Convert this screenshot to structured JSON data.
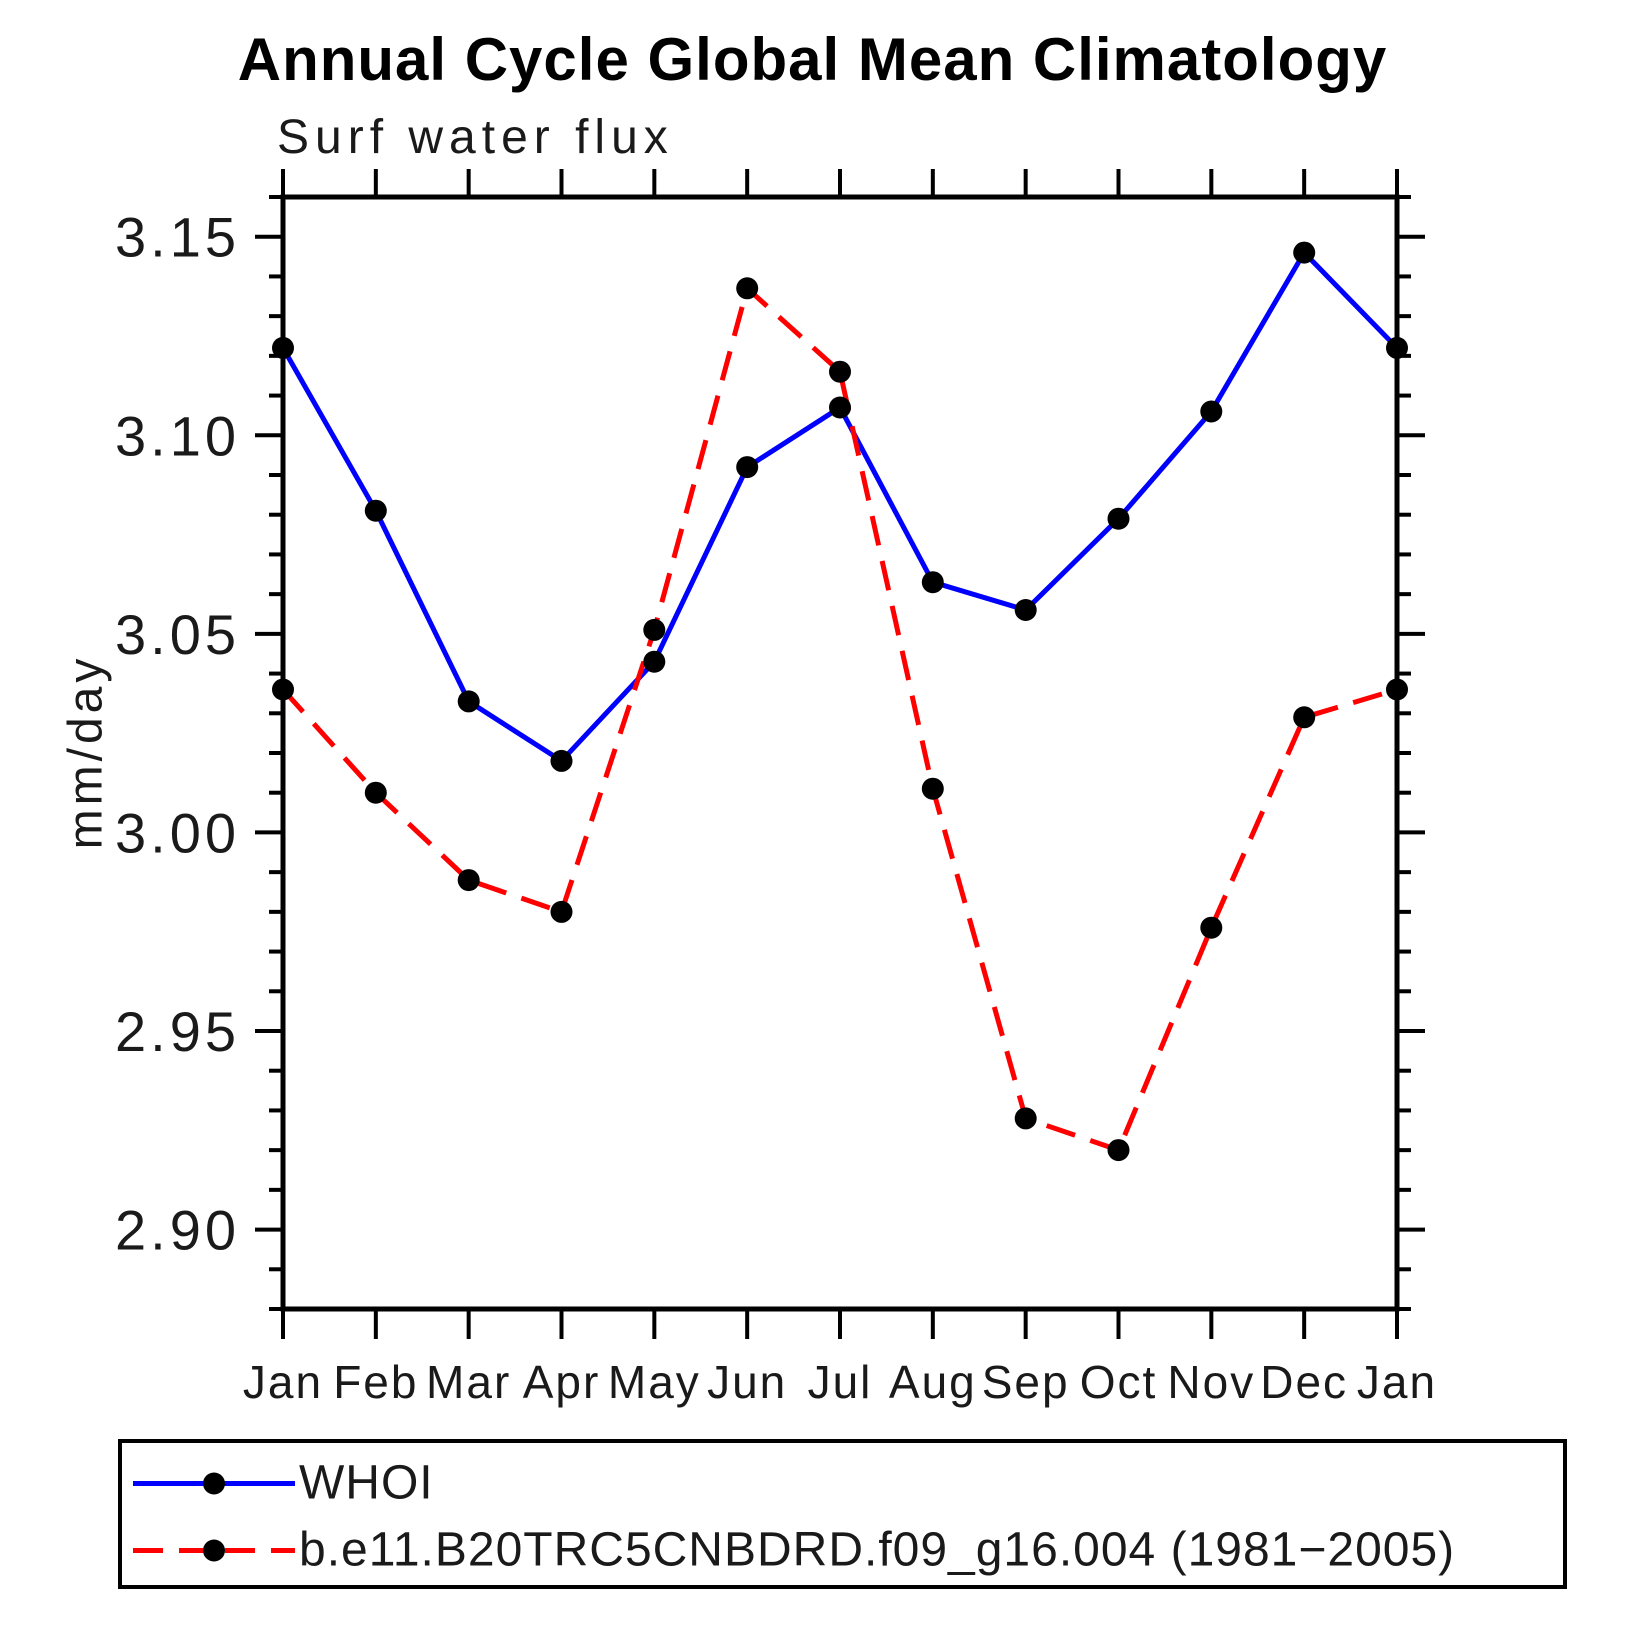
{
  "title": "Annual Cycle Global Mean Climatology",
  "subtitle": "Surf water flux",
  "chart_data": {
    "type": "line",
    "x_labels": [
      "Jan",
      "Feb",
      "Mar",
      "Apr",
      "May",
      "Jun",
      "Jul",
      "Aug",
      "Sep",
      "Oct",
      "Nov",
      "Dec",
      "Jan"
    ],
    "ylabel": "mm/day",
    "ylim": [
      2.88,
      3.16
    ],
    "y_major_ticks": [
      2.9,
      2.95,
      3.0,
      3.05,
      3.1,
      3.15
    ],
    "y_major_tick_labels": [
      "2.90",
      "2.95",
      "3.00",
      "3.05",
      "3.10",
      "3.15"
    ],
    "y_minor_step": 0.01,
    "grid": false,
    "legend_position": "bottom",
    "marker_color": "#000000",
    "axis_color": "#000000",
    "series": [
      {
        "name": "WHOI",
        "color": "#0000ff",
        "line_style": "solid",
        "marker": "circle",
        "values": [
          3.122,
          3.081,
          3.033,
          3.018,
          3.043,
          3.092,
          3.107,
          3.063,
          3.056,
          3.079,
          3.106,
          3.146,
          3.122
        ]
      },
      {
        "name": "b.e11.B20TRC5CNBDRD.f09_g16.004 (1981−2005)",
        "color": "#ff0000",
        "line_style": "dashed",
        "marker": "circle",
        "values": [
          3.036,
          3.01,
          2.988,
          2.98,
          3.051,
          3.137,
          3.116,
          3.011,
          2.928,
          2.92,
          2.976,
          3.029,
          3.036
        ]
      }
    ]
  }
}
